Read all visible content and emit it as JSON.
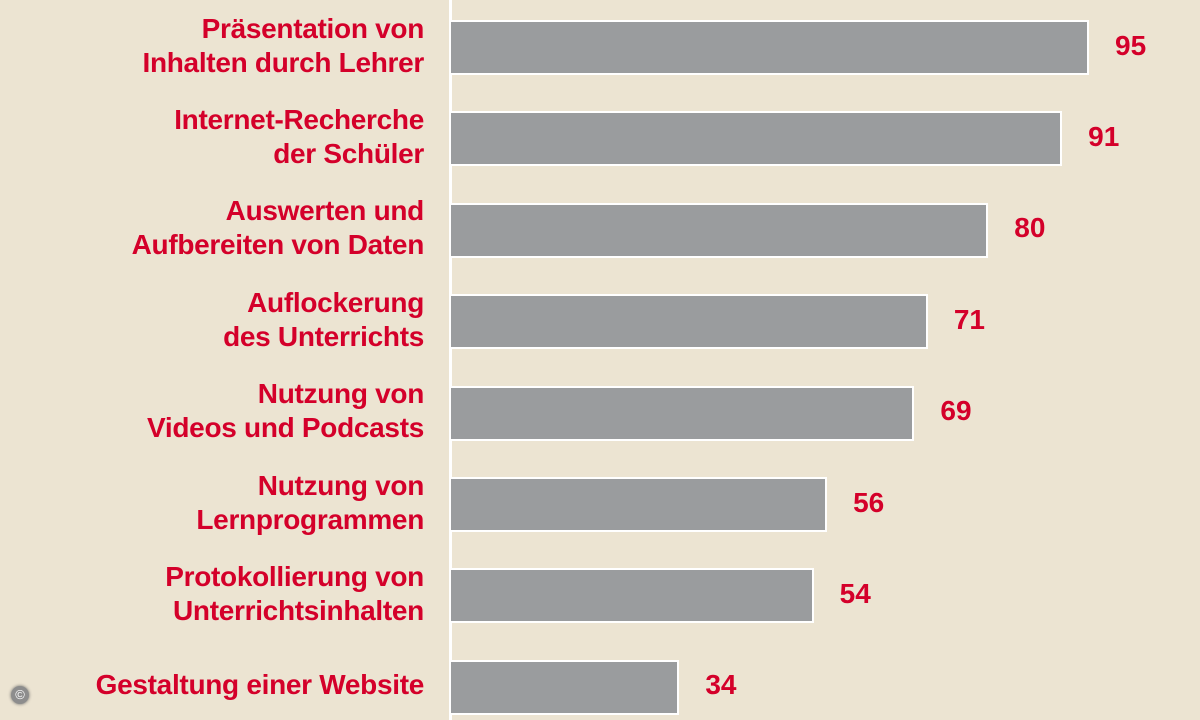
{
  "chart_data": {
    "type": "bar",
    "orientation": "horizontal",
    "categories": [
      [
        "Präsentation von",
        "Inhalten durch Lehrer"
      ],
      [
        "Internet-Recherche",
        "der Schüler"
      ],
      [
        "Auswerten und",
        "Aufbereiten von Daten"
      ],
      [
        "Auflockerung",
        "des Unterrichts"
      ],
      [
        "Nutzung von",
        "Videos und Podcasts"
      ],
      [
        "Nutzung von",
        "Lernprogrammen"
      ],
      [
        "Protokollierung von",
        "Unterrichtsinhalten"
      ],
      [
        "Gestaltung einer Website"
      ]
    ],
    "values": [
      95,
      91,
      80,
      71,
      69,
      56,
      54,
      34
    ],
    "xlim": [
      0,
      100
    ],
    "grid": false,
    "colors": {
      "bar": "#9a9c9e",
      "text": "#d4002a",
      "background": "#ece4d2"
    }
  },
  "copyright_symbol": "©"
}
